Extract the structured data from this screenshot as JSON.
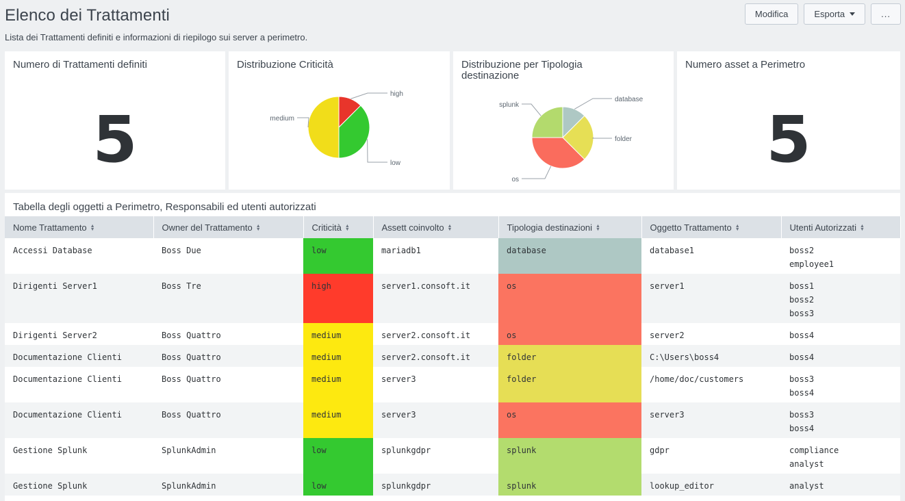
{
  "header": {
    "title": "Elenco dei Trattamenti",
    "description": "Lista dei Trattamenti definiti e informazioni di riepilogo sui server a perimetro.",
    "buttons": {
      "edit": "Modifica",
      "export": "Esporta",
      "more": "..."
    }
  },
  "panels": {
    "treatments_count": {
      "title": "Numero di Trattamenti definiti",
      "value": "5"
    },
    "criticality": {
      "title": "Distribuzione Criticità"
    },
    "destination_type": {
      "title": "Distribuzione per Tipologia destinazione"
    },
    "assets_count": {
      "title": "Numero asset a Perimetro",
      "value": "5"
    }
  },
  "chart_data": [
    {
      "type": "pie",
      "title": "Distribuzione Criticità",
      "categories": [
        "high",
        "low",
        "medium"
      ],
      "values": [
        1,
        3,
        4
      ],
      "colors": [
        "#e8352b",
        "#34c930",
        "#f1dd1a"
      ]
    },
    {
      "type": "pie",
      "title": "Distribuzione per Tipologia destinazione",
      "categories": [
        "database",
        "folder",
        "os",
        "splunk"
      ],
      "values": [
        1,
        2,
        3,
        2
      ],
      "colors": [
        "#aec8c4",
        "#e6df55",
        "#fa6c5d",
        "#b3da6d"
      ]
    }
  ],
  "table": {
    "title": "Tabella degli oggetti a Perimetro, Responsabili ed utenti autorizzati",
    "columns": [
      "Nome Trattamento",
      "Owner del Trattamento",
      "Criticità",
      "Assett coinvolto",
      "Tipologia destinazioni",
      "Oggetto Trattamento",
      "Utenti Autorizzati"
    ],
    "criticality_colors": {
      "low": "#34c930",
      "high": "#ff3b2b",
      "medium": "#fde910"
    },
    "destination_colors": {
      "database": "#aec8c4",
      "os": "#fb7460",
      "folder": "#e6de55",
      "splunk": "#b3dc6e"
    },
    "rows": [
      {
        "name": "Accessi Database",
        "owner": "Boss Due",
        "criticality": "low",
        "asset": "mariadb1",
        "destination": "database",
        "object": "database1",
        "users": [
          "boss2",
          "employee1"
        ]
      },
      {
        "name": "Dirigenti Server1",
        "owner": "Boss Tre",
        "criticality": "high",
        "asset": "server1.consoft.it",
        "destination": "os",
        "object": "server1",
        "users": [
          "boss1",
          "boss2",
          "boss3"
        ]
      },
      {
        "name": "Dirigenti Server2",
        "owner": "Boss Quattro",
        "criticality": "medium",
        "asset": "server2.consoft.it",
        "destination": "os",
        "object": "server2",
        "users": [
          "boss4"
        ]
      },
      {
        "name": "Documentazione Clienti",
        "owner": "Boss Quattro",
        "criticality": "medium",
        "asset": "server2.consoft.it",
        "destination": "folder",
        "object": "C:\\Users\\boss4",
        "users": [
          "boss4"
        ]
      },
      {
        "name": "Documentazione Clienti",
        "owner": "Boss Quattro",
        "criticality": "medium",
        "asset": "server3",
        "destination": "folder",
        "object": "/home/doc/customers",
        "users": [
          "boss3",
          "boss4"
        ]
      },
      {
        "name": "Documentazione Clienti",
        "owner": "Boss Quattro",
        "criticality": "medium",
        "asset": "server3",
        "destination": "os",
        "object": "server3",
        "users": [
          "boss3",
          "boss4"
        ]
      },
      {
        "name": "Gestione Splunk",
        "owner": "SplunkAdmin",
        "criticality": "low",
        "asset": "splunkgdpr",
        "destination": "splunk",
        "object": "gdpr",
        "users": [
          "compliance",
          "analyst"
        ]
      },
      {
        "name": "Gestione Splunk",
        "owner": "SplunkAdmin",
        "criticality": "low",
        "asset": "splunkgdpr",
        "destination": "splunk",
        "object": "lookup_editor",
        "users": [
          "analyst"
        ]
      }
    ]
  }
}
